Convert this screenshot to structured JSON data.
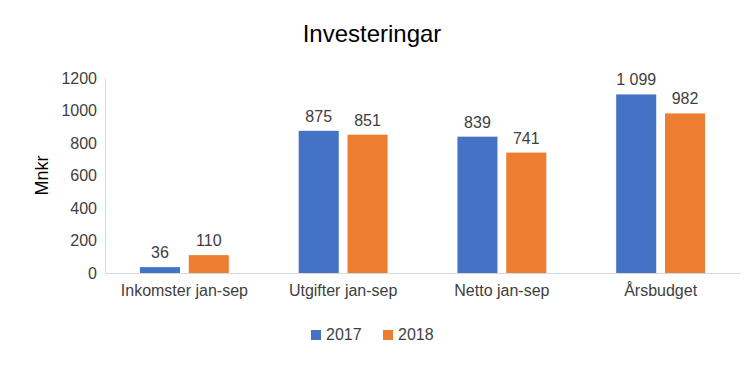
{
  "chart_data": {
    "type": "bar",
    "title": "Investeringar",
    "y_label": "Mnkr",
    "categories": [
      "Inkomster jan-sep",
      "Utgifter jan-sep",
      "Netto jan-sep",
      "Årsbudget"
    ],
    "series": [
      {
        "name": "2017",
        "color": "#4472c4",
        "values": [
          36,
          875,
          839,
          1099
        ],
        "value_labels": [
          "36",
          "875",
          "839",
          "1 099"
        ]
      },
      {
        "name": "2018",
        "color": "#ed7d31",
        "values": [
          110,
          851,
          741,
          982
        ]
      }
    ],
    "ylim": [
      0,
      1200
    ],
    "yticks": [
      0,
      200,
      400,
      600,
      800,
      1000,
      1200
    ],
    "grid": false,
    "legend": "bottom",
    "data_labels": true
  }
}
